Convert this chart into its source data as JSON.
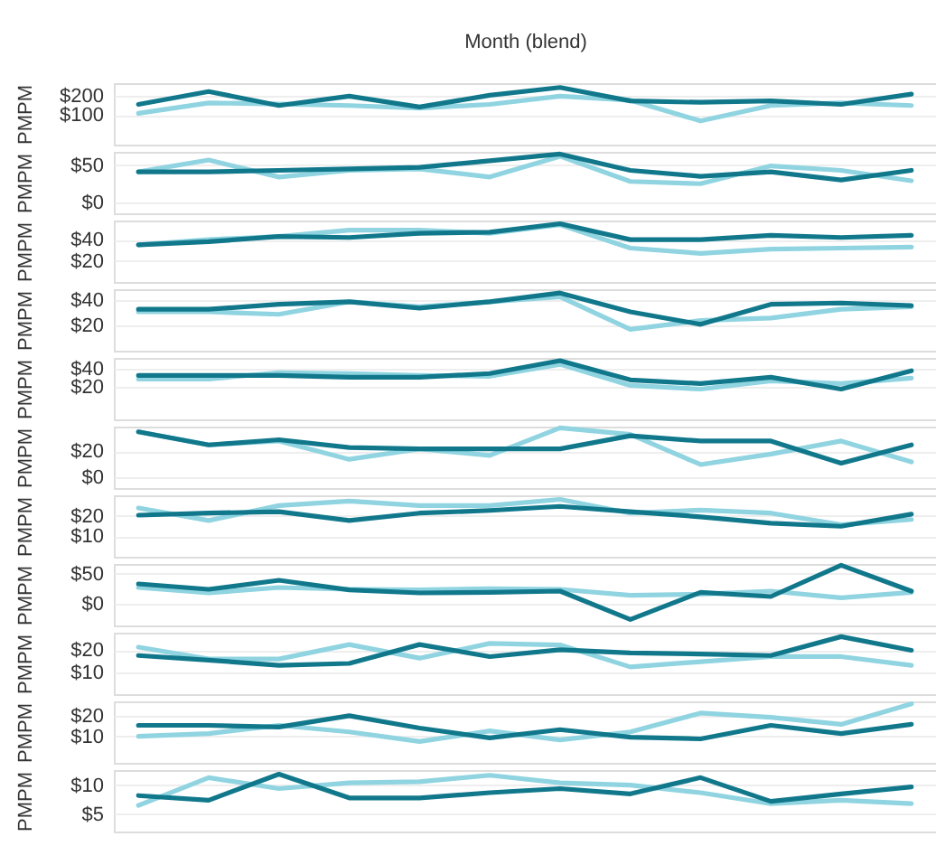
{
  "chart_data": [
    {
      "type": "line",
      "xlabel": "Month (blend)",
      "ylabel": "PMPM",
      "categories": [
        null,
        null,
        null,
        null,
        null,
        null,
        null,
        null,
        null,
        null,
        null,
        null
      ],
      "ylim": [
        -60,
        270
      ],
      "yticks": [
        {
          "value": 100,
          "label": "$100"
        },
        {
          "value": 200,
          "label": "$200"
        }
      ],
      "grid": "y",
      "tick_labels": "y",
      "series": [
        {
          "color": "#8fd4e0",
          "values": [
            108,
            164,
            158,
            150,
            136,
            156,
            200,
            178,
            67,
            150,
            164,
            150
          ]
        },
        {
          "color": "#11788c",
          "values": [
            156,
            225,
            150,
            200,
            142,
            205,
            247,
            175,
            167,
            175,
            156,
            211
          ]
        }
      ]
    },
    {
      "type": "line",
      "ylabel": "PMPM",
      "categories": [
        null,
        null,
        null,
        null,
        null,
        null,
        null,
        null,
        null,
        null,
        null,
        null
      ],
      "ylim": [
        -15,
        68
      ],
      "yticks": [
        {
          "value": 0,
          "label": "$0"
        },
        {
          "value": 50,
          "label": "$50"
        }
      ],
      "grid": "y",
      "tick_labels": "y",
      "series": [
        {
          "color": "#8fd4e0",
          "values": [
            41,
            57,
            34,
            43,
            45,
            34,
            62,
            28,
            25,
            49,
            43,
            29
          ]
        },
        {
          "color": "#11788c",
          "values": [
            41,
            41,
            43,
            45,
            47,
            56,
            65,
            43,
            35,
            41,
            30,
            43
          ]
        }
      ]
    },
    {
      "type": "line",
      "ylabel": "PMPM",
      "categories": [
        null,
        null,
        null,
        null,
        null,
        null,
        null,
        null,
        null,
        null,
        null,
        null
      ],
      "ylim": [
        0,
        58
      ],
      "yticks": [
        {
          "value": 20,
          "label": "$20"
        },
        {
          "value": 40,
          "label": "$40"
        }
      ],
      "grid": "y",
      "tick_labels": "y",
      "series": [
        {
          "color": "#8fd4e0",
          "values": [
            35,
            40,
            43,
            49,
            49,
            46,
            54,
            32,
            27,
            31,
            32,
            33
          ]
        },
        {
          "color": "#11788c",
          "values": [
            35,
            38,
            43,
            42,
            46,
            47,
            55,
            40,
            40,
            44,
            42,
            44
          ]
        }
      ]
    },
    {
      "type": "line",
      "ylabel": "PMPM",
      "categories": [
        null,
        null,
        null,
        null,
        null,
        null,
        null,
        null,
        null,
        null,
        null,
        null
      ],
      "ylim": [
        0,
        49
      ],
      "yticks": [
        {
          "value": 20,
          "label": "$20"
        },
        {
          "value": 40,
          "label": "$40"
        }
      ],
      "grid": "y",
      "tick_labels": "y",
      "series": [
        {
          "color": "#8fd4e0",
          "values": [
            31,
            31,
            29,
            39,
            35,
            39,
            43,
            17,
            24,
            26,
            33,
            35
          ]
        },
        {
          "color": "#11788c",
          "values": [
            33,
            33,
            37,
            39,
            34,
            39,
            46,
            31,
            21,
            37,
            38,
            36
          ]
        }
      ]
    },
    {
      "type": "line",
      "ylabel": "PMPM",
      "categories": [
        null,
        null,
        null,
        null,
        null,
        null,
        null,
        null,
        null,
        null,
        null,
        null
      ],
      "ylim": [
        -15,
        52
      ],
      "yticks": [
        {
          "value": 20,
          "label": "$20"
        },
        {
          "value": 40,
          "label": "$40"
        }
      ],
      "grid": "y",
      "tick_labels": "y",
      "series": [
        {
          "color": "#8fd4e0",
          "values": [
            29,
            29,
            36,
            35,
            33,
            32,
            45,
            22,
            18,
            27,
            24,
            30
          ]
        },
        {
          "color": "#11788c",
          "values": [
            33,
            33,
            33,
            31,
            31,
            35,
            49,
            28,
            24,
            31,
            18,
            38
          ]
        }
      ]
    },
    {
      "type": "line",
      "ylabel": "PMPM",
      "categories": [
        null,
        null,
        null,
        null,
        null,
        null,
        null,
        null,
        null,
        null,
        null,
        null
      ],
      "ylim": [
        -8,
        39
      ],
      "yticks": [
        {
          "value": 0,
          "label": "$0"
        },
        {
          "value": 20,
          "label": "$20"
        }
      ],
      "grid": "y",
      "tick_labels": "y",
      "series": [
        {
          "color": "#8fd4e0",
          "values": [
            35,
            25,
            28,
            14,
            22,
            17,
            38,
            33,
            10,
            18,
            28,
            12
          ]
        },
        {
          "color": "#11788c",
          "values": [
            35,
            25,
            29,
            23,
            22,
            22,
            22,
            32,
            28,
            28,
            11,
            25
          ]
        }
      ]
    },
    {
      "type": "line",
      "ylabel": "PMPM",
      "categories": [
        null,
        null,
        null,
        null,
        null,
        null,
        null,
        null,
        null,
        null,
        null,
        null
      ],
      "ylim": [
        0,
        30
      ],
      "yticks": [
        {
          "value": 10,
          "label": "$10"
        },
        {
          "value": 20,
          "label": "$20"
        }
      ],
      "grid": "y",
      "tick_labels": "y",
      "series": [
        {
          "color": "#8fd4e0",
          "values": [
            23.8,
            17.7,
            25,
            27.2,
            25,
            25,
            28,
            21.3,
            22.8,
            21.3,
            15.6,
            18.2
          ]
        },
        {
          "color": "#11788c",
          "values": [
            20.3,
            21.3,
            22,
            17.7,
            21.3,
            22.6,
            24.6,
            22,
            19.5,
            16.4,
            14.9,
            20.8
          ]
        }
      ]
    },
    {
      "type": "line",
      "ylabel": "PMPM",
      "categories": [
        null,
        null,
        null,
        null,
        null,
        null,
        null,
        null,
        null,
        null,
        null,
        null
      ],
      "ylim": [
        -36,
        66
      ],
      "yticks": [
        {
          "value": 0,
          "label": "$0"
        },
        {
          "value": 50,
          "label": "$50"
        }
      ],
      "grid": "y",
      "tick_labels": "y",
      "series": [
        {
          "color": "#8fd4e0",
          "values": [
            27,
            18,
            27,
            24,
            23,
            25,
            24,
            14,
            16,
            21,
            10,
            19
          ]
        },
        {
          "color": "#11788c",
          "values": [
            33,
            24,
            39,
            23,
            18,
            19,
            21,
            -26,
            19,
            12,
            64,
            21
          ]
        }
      ]
    },
    {
      "type": "line",
      "ylabel": "PMPM",
      "categories": [
        null,
        null,
        null,
        null,
        null,
        null,
        null,
        null,
        null,
        null,
        null,
        null
      ],
      "ylim": [
        0,
        28
      ],
      "yticks": [
        {
          "value": 10,
          "label": "$10"
        },
        {
          "value": 20,
          "label": "$20"
        }
      ],
      "grid": "y",
      "tick_labels": "y",
      "series": [
        {
          "color": "#8fd4e0",
          "values": [
            21.4,
            16,
            16,
            22.6,
            16.4,
            23.1,
            22.4,
            12.4,
            14.8,
            17.1,
            17.1,
            13.1
          ]
        },
        {
          "color": "#11788c",
          "values": [
            17.6,
            15.5,
            13.1,
            14,
            22.6,
            17.1,
            20.2,
            18.8,
            18.3,
            17.6,
            26.2,
            20
          ]
        }
      ]
    },
    {
      "type": "line",
      "ylabel": "PMPM",
      "categories": [
        null,
        null,
        null,
        null,
        null,
        null,
        null,
        null,
        null,
        null,
        null,
        null
      ],
      "ylim": [
        -3,
        27
      ],
      "yticks": [
        {
          "value": 10,
          "label": "$10"
        },
        {
          "value": 20,
          "label": "$20"
        }
      ],
      "grid": "y",
      "tick_labels": "y",
      "series": [
        {
          "color": "#8fd4e0",
          "values": [
            10,
            11.3,
            15.3,
            12.1,
            7.4,
            12.6,
            8.2,
            12.1,
            21.3,
            19.2,
            15.8,
            25.8
          ]
        },
        {
          "color": "#11788c",
          "values": [
            15.3,
            15.3,
            14.5,
            20,
            14,
            9.2,
            13.2,
            9.5,
            8.7,
            15.3,
            11.3,
            15.8
          ]
        }
      ]
    },
    {
      "type": "line",
      "ylabel": "PMPM",
      "categories": [
        null,
        null,
        null,
        null,
        null,
        null,
        null,
        null,
        null,
        null,
        null,
        null
      ],
      "ylim": [
        2,
        12.6
      ],
      "yticks": [
        {
          "value": 5,
          "label": "$5"
        },
        {
          "value": 10,
          "label": "$10"
        }
      ],
      "grid": "y",
      "tick_labels": "y",
      "series": [
        {
          "color": "#8fd4e0",
          "values": [
            6.5,
            11.3,
            9.4,
            10.4,
            10.6,
            11.7,
            10.4,
            10,
            8.7,
            6.8,
            7.4,
            6.8
          ]
        },
        {
          "color": "#11788c",
          "values": [
            8.2,
            7.4,
            11.9,
            7.8,
            7.8,
            8.7,
            9.4,
            8.5,
            11.3,
            7.2,
            8.5,
            9.7
          ]
        }
      ]
    }
  ]
}
